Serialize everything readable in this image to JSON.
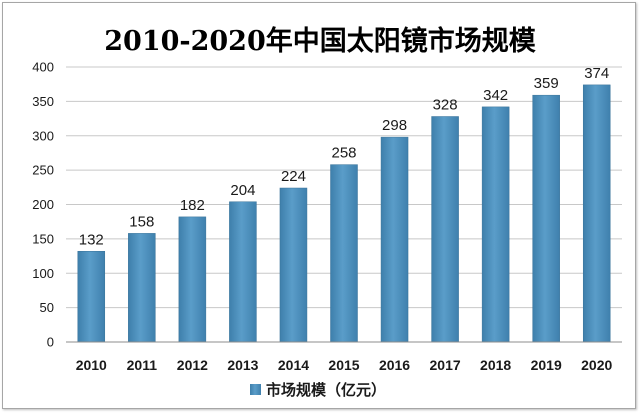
{
  "chart_data": {
    "type": "bar",
    "title": "2010-2020年中国太阳镜市场规模",
    "categories": [
      "2010",
      "2011",
      "2012",
      "2013",
      "2014",
      "2015",
      "2016",
      "2017",
      "2018",
      "2019",
      "2020"
    ],
    "series": [
      {
        "name": "市场规模（亿元）",
        "values": [
          132,
          158,
          182,
          204,
          224,
          258,
          298,
          328,
          342,
          359,
          374
        ],
        "color": "#4a8db8"
      }
    ],
    "ylim": [
      0,
      400
    ],
    "yticks": [
      0,
      50,
      100,
      150,
      200,
      250,
      300,
      350,
      400
    ],
    "grid": true,
    "legend_position": "bottom-center",
    "data_labels": true
  }
}
